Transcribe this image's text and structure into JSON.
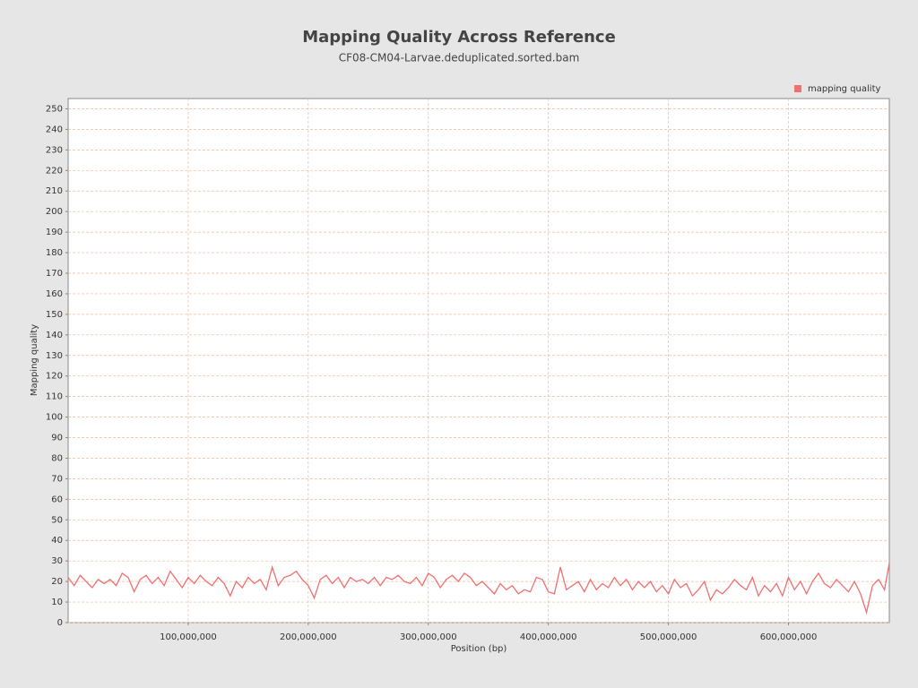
{
  "chart_data": {
    "type": "line",
    "title": "Mapping Quality Across Reference",
    "subtitle": "CF08-CM04-Larvae.deduplicated.sorted.bam",
    "x_label": "Position (bp)",
    "y_label": "Mapping quality",
    "legend_position": "top-right",
    "grid": true,
    "xlim": [
      0,
      684000000
    ],
    "ylim": [
      0,
      255
    ],
    "xticks": [
      {
        "value": 100000000,
        "label": "100,000,000"
      },
      {
        "value": 200000000,
        "label": "200,000,000"
      },
      {
        "value": 300000000,
        "label": "300,000,000"
      },
      {
        "value": 400000000,
        "label": "400,000,000"
      },
      {
        "value": 500000000,
        "label": "500,000,000"
      },
      {
        "value": 600000000,
        "label": "600,000,000"
      }
    ],
    "yticks": [
      0,
      10,
      20,
      30,
      40,
      50,
      60,
      70,
      80,
      90,
      100,
      110,
      120,
      130,
      140,
      150,
      160,
      170,
      180,
      190,
      200,
      210,
      220,
      230,
      240,
      250
    ],
    "x": [
      0,
      5000000,
      10000000,
      15000000,
      20000000,
      25000000,
      30000000,
      35000000,
      40000000,
      45000000,
      50000000,
      55000000,
      60000000,
      65000000,
      70000000,
      75000000,
      80000000,
      85000000,
      90000000,
      95000000,
      100000000,
      105000000,
      110000000,
      115000000,
      120000000,
      125000000,
      130000000,
      135000000,
      140000000,
      145000000,
      150000000,
      155000000,
      160000000,
      165000000,
      170000000,
      175000000,
      180000000,
      185000000,
      190000000,
      195000000,
      200000000,
      205000000,
      210000000,
      215000000,
      220000000,
      225000000,
      230000000,
      235000000,
      240000000,
      245000000,
      250000000,
      255000000,
      260000000,
      265000000,
      270000000,
      275000000,
      280000000,
      285000000,
      290000000,
      295000000,
      300000000,
      305000000,
      310000000,
      315000000,
      320000000,
      325000000,
      330000000,
      335000000,
      340000000,
      345000000,
      350000000,
      355000000,
      360000000,
      365000000,
      370000000,
      375000000,
      380000000,
      385000000,
      390000000,
      395000000,
      400000000,
      405000000,
      410000000,
      415000000,
      420000000,
      425000000,
      430000000,
      435000000,
      440000000,
      445000000,
      450000000,
      455000000,
      460000000,
      465000000,
      470000000,
      475000000,
      480000000,
      485000000,
      490000000,
      495000000,
      500000000,
      505000000,
      510000000,
      515000000,
      520000000,
      525000000,
      530000000,
      535000000,
      540000000,
      545000000,
      550000000,
      555000000,
      560000000,
      565000000,
      570000000,
      575000000,
      580000000,
      585000000,
      590000000,
      595000000,
      600000000,
      605000000,
      610000000,
      615000000,
      620000000,
      625000000,
      630000000,
      635000000,
      640000000,
      645000000,
      650000000,
      655000000,
      660000000,
      665000000,
      670000000,
      675000000,
      680000000,
      684000000
    ],
    "series": [
      {
        "name": "mapping quality",
        "color": "#f07070",
        "values": [
          22,
          18,
          23,
          20,
          17,
          21,
          19,
          21,
          18,
          24,
          22,
          15,
          21,
          23,
          19,
          22,
          18,
          25,
          21,
          17,
          22,
          19,
          23,
          20,
          18,
          22,
          19,
          13,
          20,
          17,
          22,
          19,
          21,
          16,
          27,
          18,
          22,
          23,
          25,
          21,
          18,
          12,
          21,
          23,
          19,
          22,
          17,
          22,
          20,
          21,
          19,
          22,
          18,
          22,
          21,
          23,
          20,
          19,
          22,
          18,
          24,
          22,
          17,
          21,
          23,
          20,
          24,
          22,
          18,
          20,
          17,
          14,
          19,
          16,
          18,
          14,
          16,
          15,
          22,
          21,
          15,
          14,
          27,
          16,
          18,
          20,
          15,
          21,
          16,
          19,
          17,
          22,
          18,
          21,
          16,
          20,
          17,
          20,
          15,
          18,
          14,
          21,
          17,
          19,
          13,
          16,
          20,
          11,
          16,
          14,
          17,
          21,
          18,
          16,
          22,
          13,
          18,
          15,
          19,
          13,
          22,
          16,
          20,
          14,
          20,
          24,
          19,
          17,
          21,
          18,
          15,
          20,
          14,
          5,
          18,
          21,
          16,
          29
        ]
      }
    ]
  }
}
